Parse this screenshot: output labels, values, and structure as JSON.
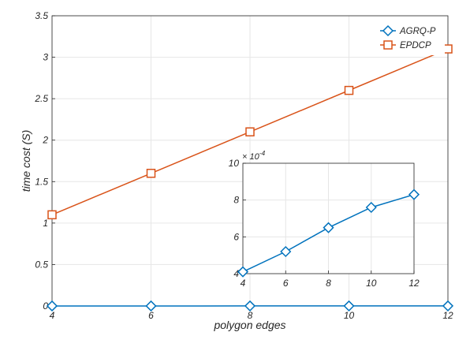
{
  "chart_data": [
    {
      "type": "line",
      "xlabel": "polygon edges",
      "ylabel": "time cost (S)",
      "xlim": [
        4,
        12
      ],
      "ylim": [
        0,
        3.5
      ],
      "xticks": [
        "4",
        "6",
        "8",
        "10",
        "12"
      ],
      "yticks": [
        "0",
        "0.5",
        "1",
        "1.5",
        "2",
        "2.5",
        "3",
        "3.5"
      ],
      "grid": true,
      "legend": "top-right",
      "series": [
        {
          "name": "AGRQ-P",
          "marker": "diamond",
          "color": "#0072BD",
          "x": [
            4,
            6,
            8,
            10,
            12
          ],
          "y": [
            0.00041,
            0.00052,
            0.00065,
            0.00076,
            0.00083
          ]
        },
        {
          "name": "EPDCP",
          "marker": "square",
          "color": "#D95319",
          "x": [
            4,
            6,
            8,
            10,
            12
          ],
          "y": [
            1.1,
            1.6,
            2.1,
            2.6,
            3.1
          ]
        }
      ]
    },
    {
      "type": "line",
      "xlim": [
        4,
        12
      ],
      "ylim": [
        4,
        10
      ],
      "xticks": [
        "4",
        "6",
        "8",
        "10",
        "12"
      ],
      "yticks": [
        "4",
        "6",
        "8",
        "10"
      ],
      "y_exponent_label": "× 10",
      "y_exponent_power": "-4",
      "grid": true,
      "series": [
        {
          "marker": "diamond",
          "color": "#0072BD",
          "x": [
            4,
            6,
            8,
            10,
            12
          ],
          "y": [
            4.1,
            5.2,
            6.5,
            7.6,
            8.3
          ]
        }
      ]
    }
  ]
}
